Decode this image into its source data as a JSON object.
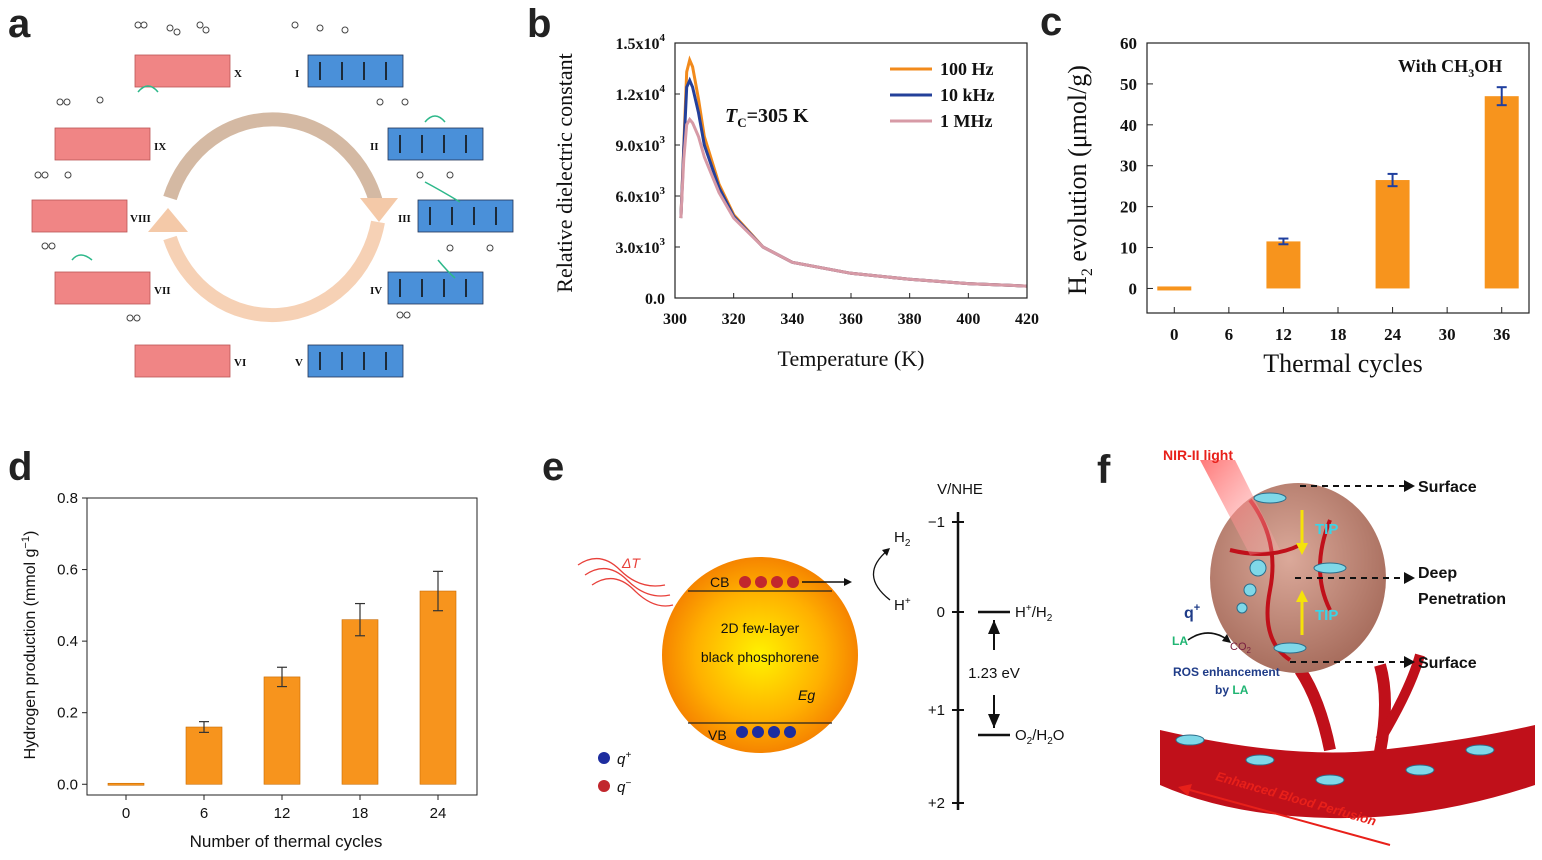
{
  "panel_labels": [
    "a",
    "b",
    "c",
    "d",
    "e",
    "f"
  ],
  "colors": {
    "orange_bar": "#f7941d",
    "error_blue": "#1f3f9f",
    "line_100hz": "#f28a1b",
    "line_10khz": "#24409a",
    "line_1mhz": "#d79aa6",
    "pink_block": "#f08585",
    "blue_block": "#4a90d9",
    "vessel_red": "#c0101a"
  },
  "panel_a": {
    "states": [
      "X",
      "I",
      "IX",
      "II",
      "VIII",
      "III",
      "VII",
      "IV",
      "VI",
      "V"
    ]
  },
  "chart_data": [
    {
      "id": "b",
      "type": "line",
      "xlabel": "Temperature (K)",
      "ylabel": "Relative dielectric constant",
      "xlim": [
        300,
        420
      ],
      "ylim": [
        0,
        15000
      ],
      "xticks": [
        "300",
        "320",
        "340",
        "360",
        "380",
        "400",
        "420"
      ],
      "yticks": [
        "0.0",
        "3.0x10",
        "6.0x10",
        "9.0x10",
        "1.2x10",
        "1.5x10"
      ],
      "ytick_exp": "3",
      "ytick_exp_top": "4",
      "annotation": "=305 K",
      "annotation_prefix": "T",
      "annotation_sub": "C",
      "legend_position": "top-right",
      "series": [
        {
          "name": "100 Hz",
          "color": "#f28a1b",
          "x": [
            302,
            303,
            304,
            305,
            306,
            308,
            310,
            315,
            320,
            330,
            340,
            360,
            380,
            400,
            420
          ],
          "y": [
            4700,
            9000,
            13300,
            14000,
            13600,
            11700,
            9500,
            6700,
            4900,
            3000,
            2100,
            1450,
            1100,
            850,
            700
          ]
        },
        {
          "name": "10 kHz",
          "color": "#24409a",
          "x": [
            302,
            303,
            304,
            305,
            306,
            308,
            310,
            315,
            320,
            330,
            340,
            360,
            380,
            400,
            420
          ],
          "y": [
            4700,
            8800,
            12400,
            12800,
            12400,
            10900,
            9000,
            6500,
            4800,
            3000,
            2100,
            1450,
            1100,
            850,
            700
          ]
        },
        {
          "name": "1 MHz",
          "color": "#d79aa6",
          "x": [
            302,
            303,
            304,
            305,
            306,
            308,
            310,
            315,
            320,
            330,
            340,
            360,
            380,
            400,
            420
          ],
          "y": [
            4700,
            8200,
            10200,
            10500,
            10300,
            9500,
            8300,
            6200,
            4700,
            3000,
            2100,
            1450,
            1100,
            850,
            700
          ]
        }
      ]
    },
    {
      "id": "c",
      "type": "bar",
      "xlabel": "Thermal cycles",
      "ylabel_prefix": "H",
      "ylabel_sub": "2",
      "ylabel_rest": " evolution (μmol/g)",
      "annotation": "With CH",
      "annotation_sub": "3",
      "annotation_rest": "OH",
      "xlim": [
        -3,
        39
      ],
      "ylim": [
        -6,
        60
      ],
      "xticks": [
        "0",
        "6",
        "12",
        "18",
        "24",
        "30",
        "36"
      ],
      "yticks": [
        "0",
        "10",
        "20",
        "30",
        "40",
        "50",
        "60"
      ],
      "categories": [
        0,
        12,
        24,
        36
      ],
      "values": [
        0,
        11.5,
        26.5,
        47
      ],
      "errors": [
        0,
        0.7,
        1.5,
        2.2
      ]
    },
    {
      "id": "d",
      "type": "bar",
      "xlabel": "Number of thermal cycles",
      "ylabel": "Hydrogen production (mmol g",
      "ylabel_sup": "−1",
      "ylabel_end": ")",
      "ylim": [
        -0.03,
        0.8
      ],
      "categories": [
        "0",
        "6",
        "12",
        "18",
        "24"
      ],
      "yticks": [
        "0.0",
        "0.2",
        "0.4",
        "0.6",
        "0.8"
      ],
      "values": [
        0.0,
        0.16,
        0.3,
        0.46,
        0.54
      ],
      "errors": [
        0.0,
        0.015,
        0.027,
        0.045,
        0.055
      ]
    }
  ],
  "panel_e": {
    "axis_title": "V/NHE",
    "ticks": [
      "−1",
      "0",
      "+1",
      "+2"
    ],
    "h_plus_h2": "H",
    "h_plus_h2_sup": "+",
    "h_plus_h2_rest": "/H",
    "h_plus_h2_sub": "2",
    "o2_h2o": "O",
    "o2_sub": "2",
    "o2_rest": "/H",
    "h2o_sub": "2",
    "o2_end": "O",
    "gap": "1.23 eV",
    "h2": "H",
    "h2_sub": "2",
    "hplus": "H",
    "hplus_sup": "+",
    "cb": "CB",
    "vb": "VB",
    "eg": "Eg",
    "material_line1": "2D few-layer",
    "material_line2": "black phosphorene",
    "delta_t": "ΔT",
    "legend_pos": "q",
    "legend_pos_sup": "+",
    "legend_neg": "q",
    "legend_neg_sup": "−"
  },
  "panel_f": {
    "nir": "NIR-II light",
    "surface_top": "Surface",
    "deep1": "Deep",
    "deep2": "Penetration",
    "surface_bottom": "Surface",
    "tip1": "TIP",
    "tip2": "TIP",
    "q_plus": "q",
    "q_plus_sup": "+",
    "la": "LA",
    "co2": "CO",
    "co2_sub": "2",
    "ros1": "ROS enhancement",
    "ros2": "by",
    "ros_la": "LA",
    "blood": "Enhanced Blood Perfusion"
  }
}
